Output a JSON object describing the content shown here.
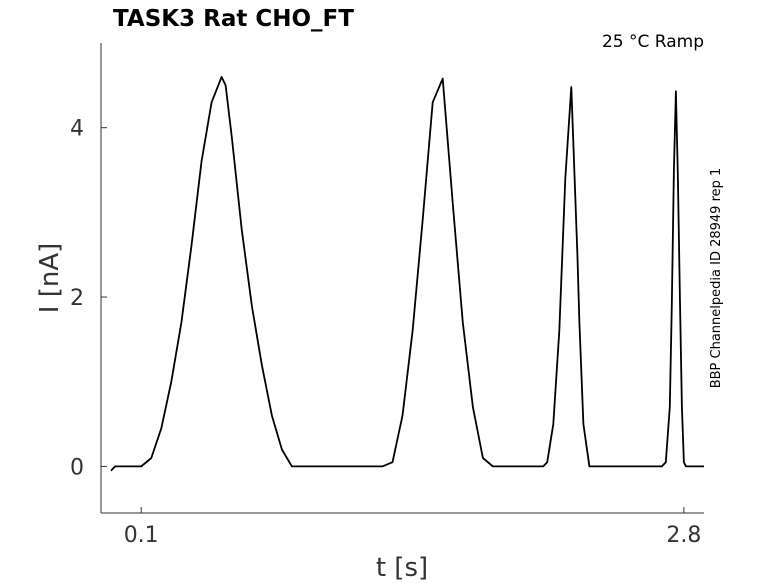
{
  "chart_data": {
    "type": "line",
    "title": "TASK3  Rat  CHO_FT",
    "annotation": "25 °C  Ramp",
    "side_label": "BBP Channelpedia ID 28949 rep 1",
    "xlabel": "t [s]",
    "ylabel": "I [nA]",
    "xlim": [
      -0.1,
      2.9
    ],
    "ylim": [
      -0.55,
      5.0
    ],
    "x_ticks": [
      0.1,
      2.8
    ],
    "x_tick_labels": [
      "0.1",
      "2.8"
    ],
    "y_ticks": [
      0,
      2,
      4
    ],
    "y_tick_labels": [
      "0",
      "2",
      "4"
    ],
    "grid": false,
    "series": [
      {
        "color": "#000000",
        "x": [
          -0.05,
          -0.03,
          0.0,
          0.05,
          0.1,
          0.15,
          0.2,
          0.25,
          0.3,
          0.35,
          0.4,
          0.45,
          0.5,
          0.52,
          0.55,
          0.6,
          0.65,
          0.7,
          0.75,
          0.8,
          0.85,
          0.9,
          0.95,
          1.0,
          1.1,
          1.2,
          1.3,
          1.35,
          1.4,
          1.45,
          1.5,
          1.55,
          1.6,
          1.65,
          1.7,
          1.75,
          1.8,
          1.85,
          1.9,
          2.0,
          2.1,
          2.12,
          2.15,
          2.18,
          2.21,
          2.24,
          2.27,
          2.28,
          2.3,
          2.33,
          2.36,
          2.39,
          2.42,
          2.45,
          2.5,
          2.6,
          2.69,
          2.71,
          2.73,
          2.74,
          2.75,
          2.76,
          2.77,
          2.78,
          2.79,
          2.8,
          2.81,
          2.82,
          2.85,
          2.9
        ],
        "y": [
          -0.05,
          0.0,
          0.0,
          0.0,
          0.0,
          0.1,
          0.45,
          1.0,
          1.7,
          2.6,
          3.6,
          4.3,
          4.6,
          4.5,
          3.9,
          2.8,
          1.9,
          1.2,
          0.6,
          0.2,
          0.0,
          0.0,
          0.0,
          0.0,
          0.0,
          0.0,
          0.0,
          0.05,
          0.6,
          1.6,
          2.9,
          4.3,
          4.58,
          3.1,
          1.7,
          0.7,
          0.1,
          0.0,
          0.0,
          0.0,
          0.0,
          0.05,
          0.5,
          1.6,
          3.4,
          4.48,
          2.5,
          1.7,
          0.5,
          0.0,
          0.0,
          0.0,
          0.0,
          0.0,
          0.0,
          0.0,
          0.0,
          0.05,
          0.7,
          1.9,
          3.5,
          4.43,
          3.4,
          2.0,
          0.7,
          0.05,
          0.0,
          0.0,
          0.0,
          0.0
        ]
      }
    ]
  }
}
